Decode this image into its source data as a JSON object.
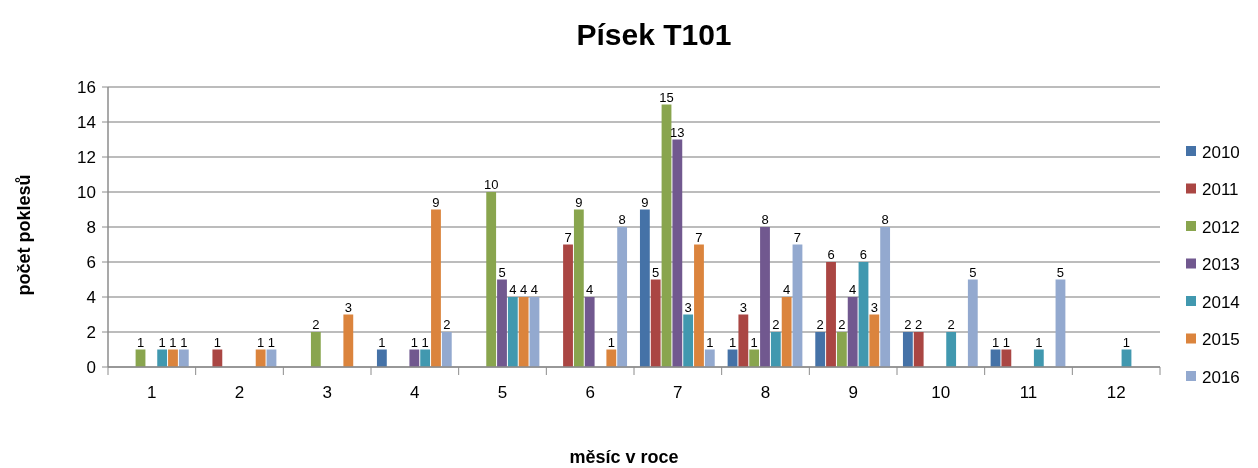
{
  "chart_data": {
    "type": "bar",
    "title": "Písek T101",
    "xlabel": "měsíc v roce",
    "ylabel": "počet poklesů",
    "categories": [
      "1",
      "2",
      "3",
      "4",
      "5",
      "6",
      "7",
      "8",
      "9",
      "10",
      "11",
      "12"
    ],
    "series": [
      {
        "name": "2010",
        "color": "#4572a7",
        "values": [
          null,
          null,
          null,
          1,
          null,
          null,
          9,
          1,
          2,
          2,
          1,
          null
        ]
      },
      {
        "name": "2011",
        "color": "#aa4643",
        "values": [
          null,
          1,
          null,
          null,
          null,
          7,
          5,
          3,
          6,
          2,
          1,
          null
        ]
      },
      {
        "name": "2012",
        "color": "#89a54e",
        "values": [
          1,
          null,
          2,
          null,
          10,
          9,
          15,
          1,
          2,
          null,
          null,
          null
        ]
      },
      {
        "name": "2013",
        "color": "#71588f",
        "values": [
          null,
          null,
          null,
          1,
          5,
          4,
          13,
          8,
          4,
          null,
          null,
          null
        ]
      },
      {
        "name": "2014",
        "color": "#4198af",
        "values": [
          1,
          null,
          null,
          1,
          4,
          null,
          3,
          2,
          6,
          2,
          1,
          1
        ]
      },
      {
        "name": "2015",
        "color": "#db843d",
        "values": [
          1,
          1,
          3,
          9,
          4,
          1,
          7,
          4,
          3,
          null,
          null,
          null
        ]
      },
      {
        "name": "2016",
        "color": "#93a9cf",
        "values": [
          1,
          1,
          null,
          2,
          4,
          8,
          1,
          7,
          8,
          5,
          5,
          null
        ]
      }
    ],
    "ylim": [
      0,
      16
    ],
    "yticks": [
      0,
      2,
      4,
      6,
      8,
      10,
      12,
      14,
      16
    ],
    "grid": "y",
    "legend": "right",
    "data_labels": true
  }
}
